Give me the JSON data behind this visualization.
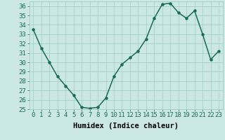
{
  "x": [
    0,
    1,
    2,
    3,
    4,
    5,
    6,
    7,
    8,
    9,
    10,
    11,
    12,
    13,
    14,
    15,
    16,
    17,
    18,
    19,
    20,
    21,
    22,
    23
  ],
  "y": [
    33.5,
    31.5,
    30.0,
    28.5,
    27.5,
    26.5,
    25.2,
    25.1,
    25.2,
    26.2,
    28.5,
    29.8,
    30.5,
    31.2,
    32.5,
    34.7,
    36.2,
    36.3,
    35.3,
    34.7,
    35.5,
    33.0,
    30.3,
    31.2
  ],
  "line_color": "#1a6b5a",
  "marker": "o",
  "marker_size": 2.2,
  "bg_color": "#cce8e4",
  "grid_color": "#a0ccc8",
  "xlabel": "Humidex (Indice chaleur)",
  "ylim": [
    25,
    36.5
  ],
  "xlim": [
    -0.5,
    23.5
  ],
  "yticks": [
    25,
    26,
    27,
    28,
    29,
    30,
    31,
    32,
    33,
    34,
    35,
    36
  ],
  "xticks": [
    0,
    1,
    2,
    3,
    4,
    5,
    6,
    7,
    8,
    9,
    10,
    11,
    12,
    13,
    14,
    15,
    16,
    17,
    18,
    19,
    20,
    21,
    22,
    23
  ],
  "xlabel_fontsize": 7.5,
  "tick_fontsize": 6.5,
  "line_width": 1.1
}
